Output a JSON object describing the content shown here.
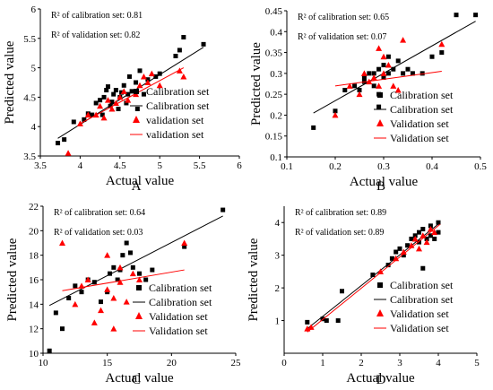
{
  "chart_data": [
    {
      "panel_label": "A",
      "type": "scatter",
      "xlabel": "Actual value",
      "ylabel": "Predicted value",
      "xlim": [
        3.5,
        6
      ],
      "ylim": [
        3.5,
        6
      ],
      "xticks": [
        "3.5",
        "4",
        "4.5",
        "5",
        "5.5",
        "6"
      ],
      "yticks": [
        "3.5",
        "4",
        "4.5",
        "5",
        "5.5",
        "6"
      ],
      "stats": [
        "R² of calibration set:  0.81",
        "R² of validation set:  0.82"
      ],
      "legend": [
        "Calibration set",
        "Calibration set",
        "validation set",
        "validation set"
      ],
      "series": [
        {
          "name": "Calibration set",
          "marker": "square",
          "color": "#000000",
          "x": [
            3.72,
            3.8,
            3.92,
            4.05,
            4.1,
            4.15,
            4.2,
            4.25,
            4.28,
            4.3,
            4.33,
            4.35,
            4.38,
            4.4,
            4.42,
            4.45,
            4.48,
            4.5,
            4.52,
            4.55,
            4.58,
            4.6,
            4.62,
            4.65,
            4.7,
            4.72,
            4.75,
            4.8,
            4.85,
            4.95,
            5.0,
            5.2,
            5.25,
            5.3,
            5.55
          ],
          "y": [
            3.72,
            3.78,
            4.08,
            4.12,
            4.22,
            4.2,
            4.4,
            4.45,
            4.2,
            4.5,
            4.62,
            4.68,
            4.35,
            4.42,
            4.55,
            4.62,
            4.3,
            4.5,
            4.58,
            4.7,
            4.4,
            4.55,
            4.85,
            4.6,
            4.75,
            4.3,
            4.95,
            4.55,
            4.8,
            4.85,
            4.9,
            5.2,
            5.3,
            5.52,
            5.4
          ]
        },
        {
          "name": "Calibration set",
          "line": true,
          "color": "#000000",
          "x": [
            3.72,
            5.55
          ],
          "y": [
            3.8,
            5.35
          ]
        },
        {
          "name": "validation set",
          "marker": "triangle",
          "color": "#ff0000",
          "x": [
            3.85,
            4.0,
            4.1,
            4.2,
            4.25,
            4.3,
            4.35,
            4.4,
            4.45,
            4.5,
            4.55,
            4.6,
            4.7,
            4.75,
            4.8,
            4.85,
            4.9,
            5.0,
            5.25,
            5.3
          ],
          "y": [
            3.55,
            4.05,
            4.2,
            4.2,
            4.35,
            4.15,
            4.45,
            4.3,
            4.4,
            4.5,
            4.6,
            4.45,
            4.55,
            4.7,
            4.85,
            4.75,
            4.9,
            4.7,
            4.95,
            4.85
          ]
        },
        {
          "name": "validation set",
          "line": true,
          "color": "#ff0000",
          "x": [
            4.0,
            5.3
          ],
          "y": [
            4.05,
            5.0
          ]
        }
      ]
    },
    {
      "panel_label": "B",
      "type": "scatter",
      "xlabel": "Actual value",
      "ylabel": "Predicted value",
      "xlim": [
        0.1,
        0.5
      ],
      "ylim": [
        0.1,
        0.45
      ],
      "xticks": [
        "0.1",
        "0.2",
        "0.3",
        "0.4",
        "0.5"
      ],
      "yticks": [
        "0.1",
        "0.15",
        "0.2",
        "0.25",
        "0.3",
        "0.35",
        "0.4",
        "0.45"
      ],
      "stats": [
        "R² of calibration set:  0.65",
        "R² of validation set:  0.07"
      ],
      "legend": [
        "Calibration set",
        "Calibration set",
        "Validation set",
        "Validation set"
      ],
      "series": [
        {
          "name": "Calibration set",
          "marker": "square",
          "color": "#000000",
          "x": [
            0.155,
            0.2,
            0.22,
            0.24,
            0.25,
            0.26,
            0.26,
            0.27,
            0.28,
            0.28,
            0.29,
            0.29,
            0.29,
            0.3,
            0.3,
            0.31,
            0.31,
            0.32,
            0.33,
            0.34,
            0.35,
            0.36,
            0.38,
            0.4,
            0.42,
            0.45,
            0.49
          ],
          "y": [
            0.17,
            0.21,
            0.26,
            0.27,
            0.26,
            0.28,
            0.29,
            0.3,
            0.3,
            0.27,
            0.31,
            0.25,
            0.22,
            0.32,
            0.29,
            0.3,
            0.34,
            0.31,
            0.33,
            0.3,
            0.31,
            0.3,
            0.3,
            0.34,
            0.35,
            0.44,
            0.44
          ]
        },
        {
          "name": "Calibration set",
          "line": true,
          "color": "#000000",
          "x": [
            0.155,
            0.49
          ],
          "y": [
            0.205,
            0.425
          ]
        },
        {
          "name": "Validation set",
          "marker": "triangle",
          "color": "#ff0000",
          "x": [
            0.2,
            0.23,
            0.25,
            0.26,
            0.27,
            0.28,
            0.29,
            0.29,
            0.3,
            0.3,
            0.31,
            0.32,
            0.33,
            0.34,
            0.42
          ],
          "y": [
            0.2,
            0.27,
            0.25,
            0.3,
            0.28,
            0.29,
            0.27,
            0.36,
            0.34,
            0.3,
            0.32,
            0.27,
            0.26,
            0.38,
            0.37
          ]
        },
        {
          "name": "Validation set",
          "line": true,
          "color": "#ff0000",
          "x": [
            0.2,
            0.42
          ],
          "y": [
            0.27,
            0.305
          ]
        }
      ]
    },
    {
      "panel_label": "C",
      "type": "scatter",
      "xlabel": "Actual value",
      "ylabel": "Predicted value",
      "xlim": [
        10,
        25
      ],
      "ylim": [
        10,
        22
      ],
      "xticks": [
        "10",
        "15",
        "20",
        "25"
      ],
      "yticks": [
        "10",
        "12",
        "14",
        "16",
        "18",
        "20",
        "22"
      ],
      "stats": [
        "R² of calibration set:  0.64",
        "R² of validation set:  0.03"
      ],
      "legend": [
        "Calibration set",
        "Calibration set",
        "Validation set",
        "Validation set"
      ],
      "series": [
        {
          "name": "Calibration set",
          "marker": "square",
          "color": "#000000",
          "x": [
            10.5,
            11.0,
            11.5,
            12.0,
            12.5,
            13.0,
            13.5,
            14.0,
            14.5,
            15.0,
            15.2,
            15.5,
            15.8,
            16.0,
            16.2,
            16.5,
            16.8,
            17.0,
            17.5,
            18.0,
            18.5,
            21.0,
            24.0
          ],
          "y": [
            10.2,
            13.3,
            12.0,
            14.5,
            15.5,
            15.0,
            16.0,
            15.8,
            14.2,
            15.0,
            16.5,
            17.0,
            16.0,
            16.8,
            18.0,
            19.0,
            18.2,
            17.0,
            16.5,
            16.0,
            16.8,
            18.7,
            21.7
          ]
        },
        {
          "name": "Calibration set",
          "line": true,
          "color": "#000000",
          "x": [
            10.5,
            24.0
          ],
          "y": [
            13.9,
            21.2
          ]
        },
        {
          "name": "Validation set",
          "marker": "triangle",
          "color": "#ff0000",
          "x": [
            11.5,
            12.5,
            13.0,
            13.5,
            14.0,
            14.5,
            15.0,
            15.0,
            15.5,
            15.5,
            16.0,
            16.0,
            16.5,
            17.0,
            17.5,
            21.0
          ],
          "y": [
            19.0,
            14.0,
            15.5,
            16.0,
            12.5,
            13.5,
            18.0,
            15.2,
            14.5,
            12.0,
            17.0,
            15.8,
            14.2,
            16.5,
            16.0,
            19.0
          ]
        },
        {
          "name": "Validation set",
          "line": true,
          "color": "#ff0000",
          "x": [
            11.5,
            21.0
          ],
          "y": [
            15.1,
            16.8
          ]
        }
      ]
    },
    {
      "panel_label": "D",
      "type": "scatter",
      "xlabel": "Actual value",
      "ylabel": "Predicted value",
      "xlim": [
        0,
        5
      ],
      "ylim": [
        0,
        4.5
      ],
      "xticks": [
        "0",
        "1",
        "2",
        "3",
        "4",
        "5"
      ],
      "yticks": [
        "1",
        "2",
        "3",
        "4"
      ],
      "stats": [
        "R² of calibration set:  0.89",
        "R² of validation set:  0.89"
      ],
      "legend": [
        "Calibration set",
        "Calibration set",
        "Validation set",
        "Validation set"
      ],
      "series": [
        {
          "name": "Calibration set",
          "marker": "square",
          "color": "#000000",
          "x": [
            0.6,
            1.0,
            1.1,
            1.4,
            1.5,
            2.3,
            2.7,
            2.8,
            2.9,
            3.0,
            3.1,
            3.2,
            3.3,
            3.4,
            3.5,
            3.5,
            3.6,
            3.6,
            3.7,
            3.8,
            3.8,
            3.9,
            4.0,
            4.0
          ],
          "y": [
            0.95,
            1.05,
            1.0,
            1.0,
            1.9,
            2.4,
            2.7,
            2.9,
            3.1,
            3.2,
            3.0,
            3.3,
            3.5,
            3.6,
            3.4,
            3.7,
            2.6,
            3.8,
            3.5,
            3.9,
            3.6,
            3.5,
            3.7,
            4.0
          ]
        },
        {
          "name": "Calibration set",
          "line": true,
          "color": "#000000",
          "x": [
            0.6,
            4.05
          ],
          "y": [
            0.75,
            4.0
          ]
        },
        {
          "name": "Validation set",
          "marker": "triangle",
          "color": "#ff0000",
          "x": [
            0.6,
            0.7,
            2.5,
            2.9,
            3.1,
            3.3,
            3.4,
            3.5,
            3.6,
            3.7,
            3.8,
            3.9
          ],
          "y": [
            0.75,
            0.8,
            2.5,
            2.9,
            3.1,
            3.3,
            3.5,
            3.2,
            3.6,
            3.4,
            3.8,
            3.7
          ]
        },
        {
          "name": "Validation set",
          "line": true,
          "color": "#ff0000",
          "x": [
            0.6,
            4.05
          ],
          "y": [
            0.65,
            3.95
          ]
        }
      ]
    }
  ]
}
